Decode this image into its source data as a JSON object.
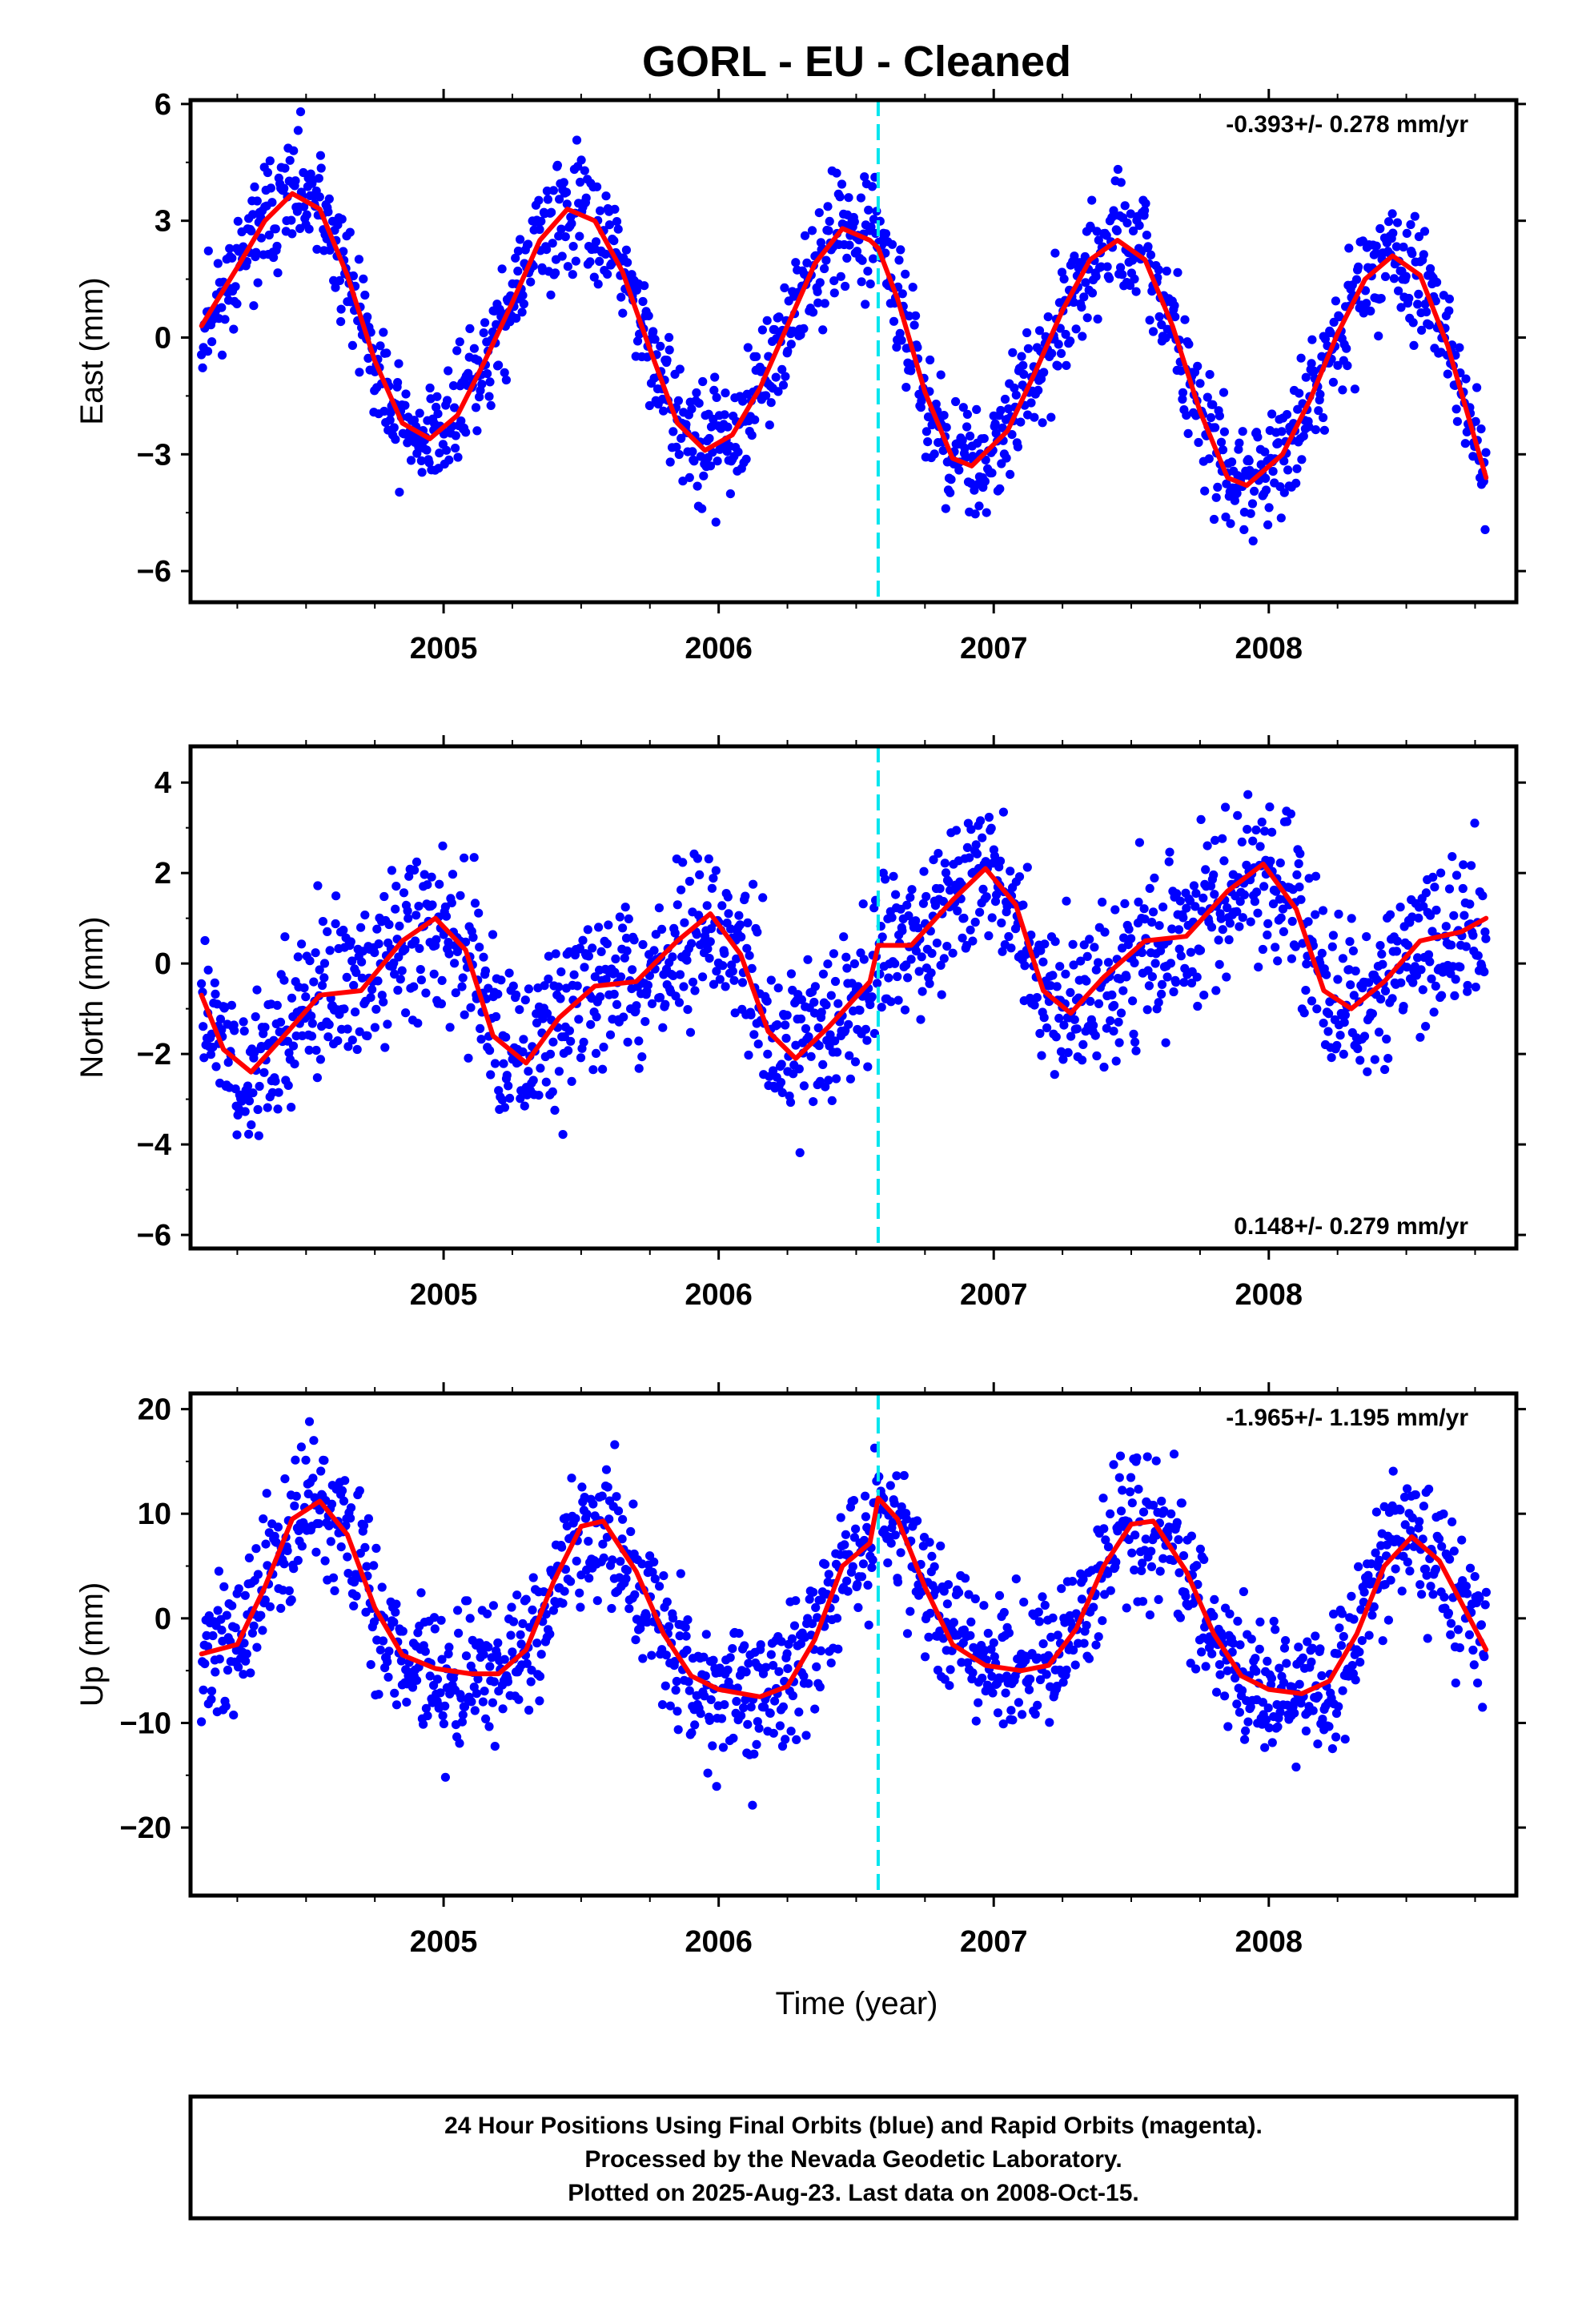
{
  "title": "GORL  - EU - Cleaned",
  "xlabel": "Time (year)",
  "colors": {
    "final_orbits": "#0000ff",
    "rapid_orbits": "#ff00ff",
    "model_fit": "#ff0000",
    "equipment_change": "#00e5ee",
    "frame": "#000000"
  },
  "footer": {
    "line1": "24 Hour Positions Using Final Orbits (blue) and Rapid Orbits (magenta).",
    "line2": "Processed by the Nevada Geodetic Laboratory.",
    "line3": "Plotted on 2025-Aug-23. Last data on 2008-Oct-15."
  },
  "chart_data": [
    {
      "type": "scatter",
      "panel": "east",
      "ylabel": "East (mm)",
      "rate_text": "-0.393+/- 0.278 mm/yr",
      "xlim": [
        2004.08,
        2008.9
      ],
      "ylim": [
        -6.8,
        6.1
      ],
      "xticks": [
        2005,
        2006,
        2007,
        2008
      ],
      "xtick_labels": [
        "2005",
        "2006",
        "2007",
        "2008"
      ],
      "yticks": [
        -6,
        -3,
        0,
        3,
        6
      ],
      "ytick_labels": [
        "−6",
        "−3",
        "0",
        "3",
        "6"
      ],
      "break_x": 2006.58,
      "data_range": [
        2004.12,
        2008.79
      ],
      "fit": [
        [
          2004.12,
          0.3
        ],
        [
          2004.25,
          1.8
        ],
        [
          2004.35,
          3.0
        ],
        [
          2004.45,
          3.7
        ],
        [
          2004.55,
          3.3
        ],
        [
          2004.65,
          1.6
        ],
        [
          2004.75,
          -0.6
        ],
        [
          2004.85,
          -2.2
        ],
        [
          2004.95,
          -2.6
        ],
        [
          2005.05,
          -2.0
        ],
        [
          2005.15,
          -0.6
        ],
        [
          2005.25,
          0.9
        ],
        [
          2005.35,
          2.5
        ],
        [
          2005.45,
          3.3
        ],
        [
          2005.55,
          3.0
        ],
        [
          2005.65,
          1.7
        ],
        [
          2005.75,
          -0.3
        ],
        [
          2005.85,
          -2.2
        ],
        [
          2005.95,
          -2.9
        ],
        [
          2006.05,
          -2.5
        ],
        [
          2006.15,
          -1.3
        ],
        [
          2006.25,
          0.3
        ],
        [
          2006.35,
          1.9
        ],
        [
          2006.45,
          2.8
        ],
        [
          2006.55,
          2.5
        ],
        [
          2006.58,
          2.3
        ],
        [
          2006.65,
          1.0
        ],
        [
          2006.75,
          -1.4
        ],
        [
          2006.85,
          -3.1
        ],
        [
          2006.92,
          -3.3
        ],
        [
          2007.05,
          -2.4
        ],
        [
          2007.15,
          -0.9
        ],
        [
          2007.25,
          0.7
        ],
        [
          2007.35,
          2.0
        ],
        [
          2007.45,
          2.5
        ],
        [
          2007.55,
          2.0
        ],
        [
          2007.65,
          0.3
        ],
        [
          2007.75,
          -1.9
        ],
        [
          2007.85,
          -3.6
        ],
        [
          2007.92,
          -3.8
        ],
        [
          2008.05,
          -3.0
        ],
        [
          2008.15,
          -1.6
        ],
        [
          2008.25,
          0.1
        ],
        [
          2008.35,
          1.5
        ],
        [
          2008.45,
          2.1
        ],
        [
          2008.55,
          1.6
        ],
        [
          2008.65,
          -0.2
        ],
        [
          2008.79,
          -3.6
        ]
      ],
      "scatter": {
        "mode": "fit_plus_spread",
        "spread": 1.0,
        "count": 1480,
        "seed": 11
      }
    },
    {
      "type": "scatter",
      "panel": "north",
      "ylabel": "North (mm)",
      "rate_text": "0.148+/- 0.279 mm/yr",
      "xlim": [
        2004.08,
        2008.9
      ],
      "ylim": [
        -6.3,
        4.8
      ],
      "xticks": [
        2005,
        2006,
        2007,
        2008
      ],
      "xtick_labels": [
        "2005",
        "2006",
        "2007",
        "2008"
      ],
      "yticks": [
        -6,
        -4,
        -2,
        0,
        2,
        4
      ],
      "ytick_labels": [
        "−6",
        "−4",
        "−2",
        "0",
        "2",
        "4"
      ],
      "break_x": 2006.58,
      "data_range": [
        2004.12,
        2008.79
      ],
      "fit": [
        [
          2004.12,
          -0.7
        ],
        [
          2004.2,
          -1.9
        ],
        [
          2004.3,
          -2.4
        ],
        [
          2004.42,
          -1.6
        ],
        [
          2004.55,
          -0.7
        ],
        [
          2004.7,
          -0.6
        ],
        [
          2004.85,
          0.5
        ],
        [
          2004.97,
          1.0
        ],
        [
          2005.08,
          0.3
        ],
        [
          2005.18,
          -1.6
        ],
        [
          2005.3,
          -2.2
        ],
        [
          2005.42,
          -1.2
        ],
        [
          2005.55,
          -0.5
        ],
        [
          2005.7,
          -0.4
        ],
        [
          2005.85,
          0.5
        ],
        [
          2005.97,
          1.1
        ],
        [
          2006.08,
          0.2
        ],
        [
          2006.18,
          -1.5
        ],
        [
          2006.28,
          -2.1
        ],
        [
          2006.4,
          -1.4
        ],
        [
          2006.55,
          -0.4
        ],
        [
          2006.58,
          0.4
        ],
        [
          2006.7,
          0.4
        ],
        [
          2006.85,
          1.4
        ],
        [
          2006.97,
          2.1
        ],
        [
          2007.08,
          1.3
        ],
        [
          2007.18,
          -0.6
        ],
        [
          2007.28,
          -1.1
        ],
        [
          2007.4,
          -0.3
        ],
        [
          2007.55,
          0.5
        ],
        [
          2007.7,
          0.6
        ],
        [
          2007.85,
          1.6
        ],
        [
          2007.98,
          2.2
        ],
        [
          2008.1,
          1.2
        ],
        [
          2008.2,
          -0.6
        ],
        [
          2008.3,
          -1.0
        ],
        [
          2008.42,
          -0.4
        ],
        [
          2008.55,
          0.5
        ],
        [
          2008.7,
          0.7
        ],
        [
          2008.79,
          1.0
        ]
      ],
      "scatter": {
        "mode": "fit_plus_spread",
        "spread": 1.2,
        "count": 1480,
        "seed": 23
      }
    },
    {
      "type": "scatter",
      "panel": "up",
      "ylabel": "Up (mm)",
      "rate_text": "-1.965+/- 1.195 mm/yr",
      "xlim": [
        2004.08,
        2008.9
      ],
      "ylim": [
        -26.5,
        21.5
      ],
      "xticks": [
        2005,
        2006,
        2007,
        2008
      ],
      "xtick_labels": [
        "2005",
        "2006",
        "2007",
        "2008"
      ],
      "yticks": [
        -20,
        -10,
        0,
        10,
        20
      ],
      "ytick_labels": [
        "−20",
        "−10",
        "0",
        "10",
        "20"
      ],
      "break_x": 2006.58,
      "data_range": [
        2004.12,
        2008.79
      ],
      "fit": [
        [
          2004.12,
          -3.4
        ],
        [
          2004.25,
          -2.5
        ],
        [
          2004.35,
          3.0
        ],
        [
          2004.45,
          9.5
        ],
        [
          2004.55,
          11.2
        ],
        [
          2004.65,
          8.0
        ],
        [
          2004.75,
          1.0
        ],
        [
          2004.85,
          -3.5
        ],
        [
          2004.97,
          -4.8
        ],
        [
          2005.1,
          -5.3
        ],
        [
          2005.2,
          -5.3
        ],
        [
          2005.3,
          -3.0
        ],
        [
          2005.4,
          3.5
        ],
        [
          2005.5,
          8.8
        ],
        [
          2005.58,
          9.3
        ],
        [
          2005.7,
          4.5
        ],
        [
          2005.8,
          -1.5
        ],
        [
          2005.9,
          -5.5
        ],
        [
          2006.0,
          -6.8
        ],
        [
          2006.15,
          -7.5
        ],
        [
          2006.25,
          -6.5
        ],
        [
          2006.35,
          -2.0
        ],
        [
          2006.45,
          5.0
        ],
        [
          2006.55,
          7.2
        ],
        [
          2006.58,
          11.5
        ],
        [
          2006.65,
          9.5
        ],
        [
          2006.75,
          3.0
        ],
        [
          2006.85,
          -2.5
        ],
        [
          2006.97,
          -4.5
        ],
        [
          2007.1,
          -5.0
        ],
        [
          2007.2,
          -4.5
        ],
        [
          2007.3,
          -1.0
        ],
        [
          2007.4,
          5.0
        ],
        [
          2007.5,
          9.0
        ],
        [
          2007.58,
          9.3
        ],
        [
          2007.7,
          4.5
        ],
        [
          2007.8,
          -1.5
        ],
        [
          2007.9,
          -5.5
        ],
        [
          2008.0,
          -6.8
        ],
        [
          2008.12,
          -7.2
        ],
        [
          2008.22,
          -6.0
        ],
        [
          2008.32,
          -1.5
        ],
        [
          2008.42,
          5.0
        ],
        [
          2008.52,
          7.8
        ],
        [
          2008.62,
          5.5
        ],
        [
          2008.72,
          0.5
        ],
        [
          2008.79,
          -3.0
        ]
      ],
      "scatter": {
        "mode": "fit_plus_spread",
        "spread": 4.5,
        "count": 1480,
        "seed": 37
      }
    }
  ]
}
